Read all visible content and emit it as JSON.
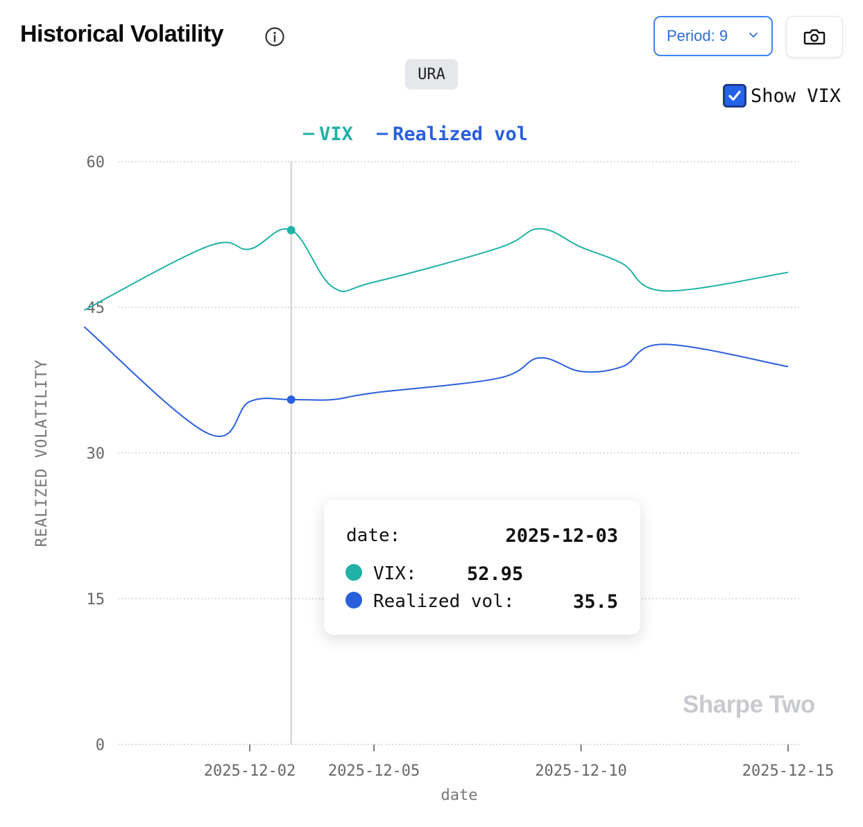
{
  "header": {
    "title": "Historical Volatility",
    "period_label": "Period: 9",
    "symbol": "URA",
    "show_vix_label": "Show VIX",
    "show_vix_checked": true
  },
  "tooltip": {
    "date_label": "date:",
    "date_value": "2025-12-03",
    "vix_label": "VIX:",
    "vix_value": "52.95",
    "rv_label": "Realized vol:",
    "rv_value": "35.5"
  },
  "watermark": "Sharpe Two",
  "colors": {
    "vix": "#20b2a6",
    "realized": "#2a5fdc",
    "grid": "#c8c8c8",
    "axis": "#666666"
  },
  "icons": {
    "info": "info-icon",
    "chevron": "chevron-down-icon",
    "camera": "camera-icon",
    "check": "check-icon"
  },
  "chart_data": {
    "type": "line",
    "xlabel": "date",
    "ylabel": "REALIZED VOLATILITY",
    "ylim": [
      0,
      60
    ],
    "yticks": [
      0,
      15,
      30,
      45,
      60
    ],
    "xticks": [
      "2025-12-02",
      "2025-12-05",
      "2025-12-10",
      "2025-12-15"
    ],
    "grid": true,
    "legend_position": "top-center",
    "hover_date": "2025-12-03",
    "x": [
      "2025-11-28",
      "2025-12-01",
      "2025-12-02",
      "2025-12-03",
      "2025-12-04",
      "2025-12-05",
      "2025-12-08",
      "2025-12-09",
      "2025-12-10",
      "2025-12-11",
      "2025-12-12",
      "2025-12-15"
    ],
    "series": [
      {
        "name": "VIX",
        "values": [
          44.7,
          51.3,
          51.0,
          52.95,
          47.1,
          47.6,
          51.1,
          53.1,
          51.2,
          49.5,
          46.7,
          48.6
        ]
      },
      {
        "name": "Realized vol",
        "values": [
          43.0,
          32.0,
          35.3,
          35.5,
          35.5,
          36.2,
          37.7,
          39.8,
          38.4,
          38.9,
          41.2,
          38.9
        ]
      }
    ]
  }
}
